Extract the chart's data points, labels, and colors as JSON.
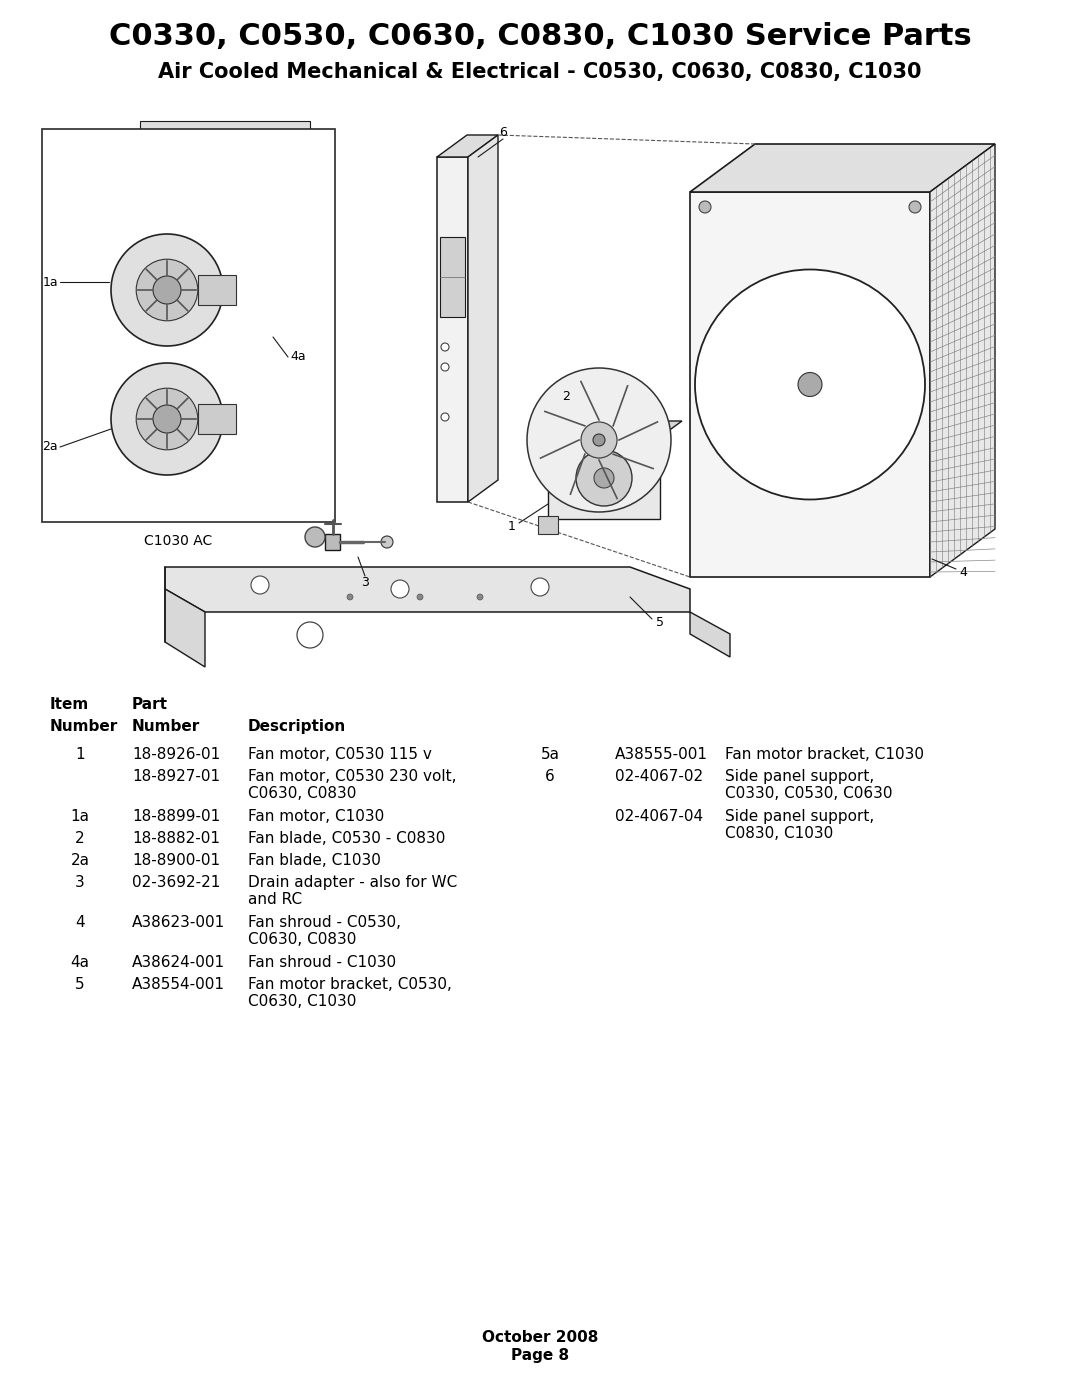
{
  "title": "C0330, C0530, C0630, C0830, C1030 Service Parts",
  "subtitle": "Air Cooled Mechanical & Electrical - C0530, C0630, C0830, C1030",
  "footer": "October 2008\nPage 8",
  "diagram_label": "C1030 AC",
  "left_table": [
    [
      "1",
      "18-8926-01",
      "Fan motor, C0530 115 v"
    ],
    [
      "",
      "18-8927-01",
      "Fan motor, C0530 230 volt,\nC0630, C0830"
    ],
    [
      "1a",
      "18-8899-01",
      "Fan motor, C1030"
    ],
    [
      "2",
      "18-8882-01",
      "Fan blade, C0530 - C0830"
    ],
    [
      "2a",
      "18-8900-01",
      "Fan blade, C1030"
    ],
    [
      "3",
      "02-3692-21",
      "Drain adapter - also for WC\nand RC"
    ],
    [
      "4",
      "A38623-001",
      "Fan shroud - C0530,\nC0630, C0830"
    ],
    [
      "4a",
      "A38624-001",
      "Fan shroud - C1030"
    ],
    [
      "5",
      "A38554-001",
      "Fan motor bracket, C0530,\nC0630, C1030"
    ]
  ],
  "right_table": [
    [
      "5a",
      "A38555-001",
      "Fan motor bracket, C1030"
    ],
    [
      "6",
      "02-4067-02",
      "Side panel support,\nC0330, C0530, C0630"
    ],
    [
      "",
      "02-4067-04",
      "Side panel support,\nC0830, C1030"
    ]
  ],
  "background_color": "#ffffff",
  "text_color": "#000000",
  "title_fontsize": 22,
  "subtitle_fontsize": 15,
  "table_fontsize": 11
}
